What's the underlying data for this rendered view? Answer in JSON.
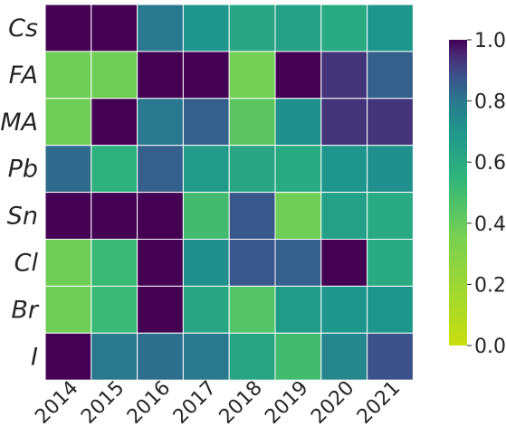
{
  "chart_data": {
    "type": "heatmap",
    "x_categories": [
      "2014",
      "2015",
      "2016",
      "2017",
      "2018",
      "2019",
      "2020",
      "2021"
    ],
    "y_categories": [
      "Cs",
      "FA",
      "MA",
      "Pb",
      "Sn",
      "Cl",
      "Br",
      "I"
    ],
    "values": [
      [
        1.0,
        1.0,
        0.8,
        0.7,
        0.62,
        0.65,
        0.6,
        0.7
      ],
      [
        0.38,
        0.38,
        1.0,
        1.0,
        0.37,
        1.0,
        0.93,
        0.85
      ],
      [
        0.38,
        1.0,
        0.8,
        0.85,
        0.43,
        0.72,
        0.93,
        0.93
      ],
      [
        0.83,
        0.57,
        0.85,
        0.68,
        0.62,
        0.6,
        0.7,
        0.72
      ],
      [
        1.0,
        1.0,
        1.0,
        0.5,
        0.87,
        0.38,
        0.65,
        0.6
      ],
      [
        0.38,
        0.52,
        1.0,
        0.72,
        0.87,
        0.85,
        1.0,
        0.6
      ],
      [
        0.38,
        0.52,
        1.0,
        0.62,
        0.45,
        0.68,
        0.7,
        0.7
      ],
      [
        1.0,
        0.8,
        0.82,
        0.8,
        0.62,
        0.5,
        0.75,
        0.88
      ]
    ],
    "colormap": "viridis_r",
    "vmin": 0.0,
    "vmax": 1.0,
    "colorbar": {
      "ticks": [
        "0.0",
        "0.2",
        "0.4",
        "0.6",
        "0.8",
        "1.0"
      ],
      "tick_values": [
        0.0,
        0.2,
        0.4,
        0.6,
        0.8,
        1.0
      ],
      "position": "right"
    },
    "title": "",
    "xlabel": "",
    "ylabel": "",
    "grid": false
  }
}
